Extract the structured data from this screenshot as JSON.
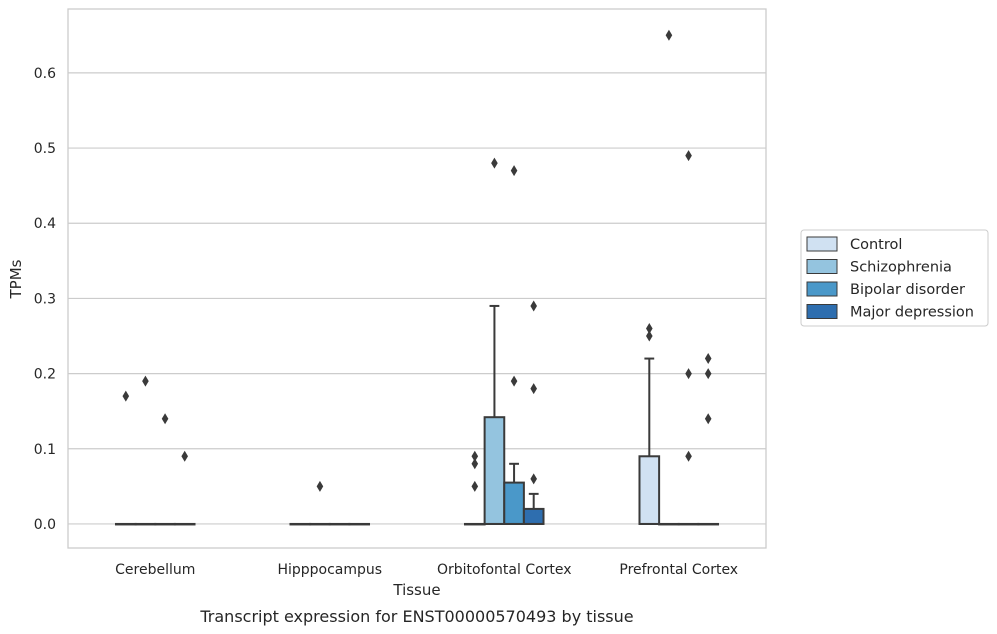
{
  "chart_data": {
    "type": "box",
    "xlabel": "Tissue",
    "ylabel": "TPMs",
    "caption": "Transcript expression for ENST00000570493 by tissue",
    "ylim": [
      -0.032,
      0.685
    ],
    "yticks": [
      0.0,
      0.1,
      0.2,
      0.3,
      0.4,
      0.5,
      0.6
    ],
    "ytick_labels": [
      "0.0",
      "0.1",
      "0.2",
      "0.3",
      "0.4",
      "0.5",
      "0.6"
    ],
    "grid": "horizontal",
    "legend_position": "right",
    "categories": [
      "Cerebellum",
      "Hipppocampus",
      "Orbitofontal Cortex",
      "Prefrontal Cortex"
    ],
    "series": [
      {
        "name": "Control",
        "color": "#d0e1f2",
        "boxes": [
          {
            "q1": 0,
            "median": 0,
            "q3": 0,
            "whislo": 0,
            "whishi": 0,
            "fliers": [
              0.17
            ]
          },
          {
            "q1": 0,
            "median": 0,
            "q3": 0,
            "whislo": 0,
            "whishi": 0,
            "fliers": []
          },
          {
            "q1": 0,
            "median": 0,
            "q3": 0,
            "whislo": 0,
            "whishi": 0,
            "fliers": [
              0.05,
              0.08,
              0.09
            ]
          },
          {
            "q1": 0,
            "median": 0,
            "q3": 0.09,
            "whislo": 0,
            "whishi": 0.22,
            "fliers": [
              0.25,
              0.26
            ]
          }
        ]
      },
      {
        "name": "Schizophrenia",
        "color": "#94c4df",
        "boxes": [
          {
            "q1": 0,
            "median": 0,
            "q3": 0,
            "whislo": 0,
            "whishi": 0,
            "fliers": [
              0.19
            ]
          },
          {
            "q1": 0,
            "median": 0,
            "q3": 0,
            "whislo": 0,
            "whishi": 0,
            "fliers": [
              0.05
            ]
          },
          {
            "q1": 0,
            "median": 0,
            "q3": 0.142,
            "whislo": 0,
            "whishi": 0.29,
            "fliers": [
              0.48
            ]
          },
          {
            "q1": 0,
            "median": 0,
            "q3": 0,
            "whislo": 0,
            "whishi": 0,
            "fliers": [
              0.65
            ]
          }
        ]
      },
      {
        "name": "Bipolar disorder",
        "color": "#4a98c9",
        "boxes": [
          {
            "q1": 0,
            "median": 0,
            "q3": 0,
            "whislo": 0,
            "whishi": 0,
            "fliers": [
              0.14
            ]
          },
          {
            "q1": 0,
            "median": 0,
            "q3": 0,
            "whislo": 0,
            "whishi": 0,
            "fliers": []
          },
          {
            "q1": 0,
            "median": 0,
            "q3": 0.055,
            "whislo": 0,
            "whishi": 0.08,
            "fliers": [
              0.19,
              0.47
            ]
          },
          {
            "q1": 0,
            "median": 0,
            "q3": 0,
            "whislo": 0,
            "whishi": 0,
            "fliers": [
              0.09,
              0.2,
              0.49
            ]
          }
        ]
      },
      {
        "name": "Major depression",
        "color": "#2e6eaf",
        "boxes": [
          {
            "q1": 0,
            "median": 0,
            "q3": 0,
            "whislo": 0,
            "whishi": 0,
            "fliers": [
              0.09
            ]
          },
          {
            "q1": 0,
            "median": 0,
            "q3": 0,
            "whislo": 0,
            "whishi": 0,
            "fliers": []
          },
          {
            "q1": 0,
            "median": 0,
            "q3": 0.02,
            "whislo": 0,
            "whishi": 0.04,
            "fliers": [
              0.06,
              0.18,
              0.29
            ]
          },
          {
            "q1": 0,
            "median": 0,
            "q3": 0,
            "whislo": 0,
            "whishi": 0,
            "fliers": [
              0.14,
              0.2,
              0.22
            ]
          }
        ]
      }
    ]
  }
}
